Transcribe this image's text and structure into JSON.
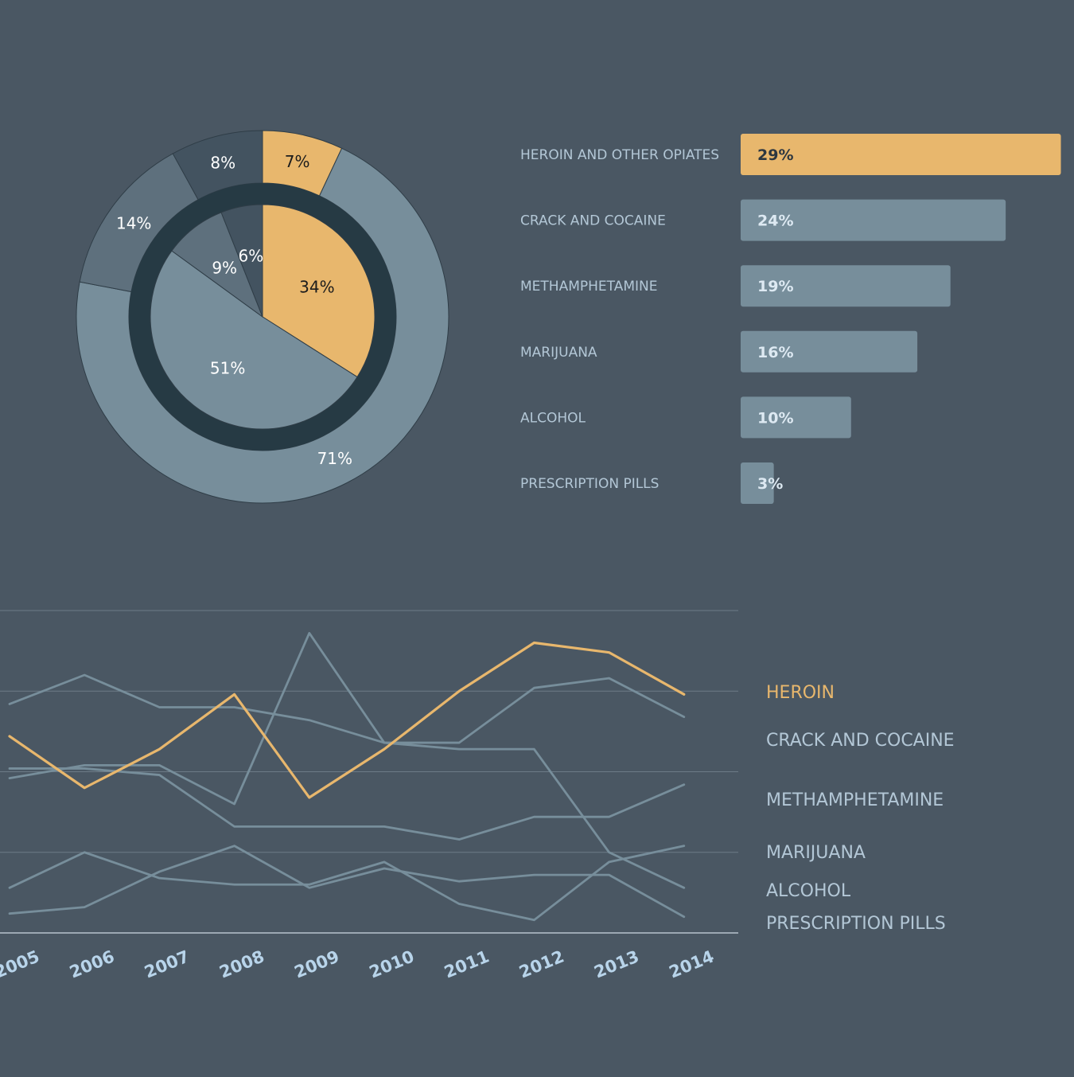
{
  "colors": {
    "background": "#4a5763",
    "highlight": "#e8b76d",
    "muted": "#778e9b",
    "dark_slice": "#5e707d",
    "darker_slice": "#435360",
    "inner_ring": "#263a44",
    "text_light": "#ffffff",
    "text_label": "#b3c7d6"
  },
  "chart_data": [
    {
      "type": "pie",
      "ring": "outer",
      "slices": [
        {
          "label": "7%",
          "value": 7,
          "color": "#e8b76d"
        },
        {
          "label": "71%",
          "value": 71,
          "color": "#778e9b"
        },
        {
          "label": "14%",
          "value": 14,
          "color": "#5e707d"
        },
        {
          "label": "8%",
          "value": 8,
          "color": "#435360"
        }
      ]
    },
    {
      "type": "pie",
      "ring": "inner",
      "slices": [
        {
          "label": "34%",
          "value": 34,
          "color": "#e8b76d"
        },
        {
          "label": "51%",
          "value": 51,
          "color": "#778e9b"
        },
        {
          "label": "9%",
          "value": 9,
          "color": "#5e707d"
        },
        {
          "label": "6%",
          "value": 6,
          "color": "#435360"
        }
      ]
    },
    {
      "type": "bar",
      "orientation": "horizontal",
      "categories": [
        "HEROIN AND OTHER OPIATES",
        "CRACK AND COCAINE",
        "METHAMPHETAMINE",
        "MARIJUANA",
        "ALCOHOL",
        "PRESCRIPTION PILLS"
      ],
      "values": [
        29,
        24,
        19,
        16,
        10,
        3
      ],
      "value_labels": [
        "29%",
        "24%",
        "19%",
        "16%",
        "10%",
        "3%"
      ],
      "highlight_index": 0
    },
    {
      "type": "line",
      "x": [
        "2005",
        "2006",
        "2007",
        "2008",
        "2009",
        "2010",
        "2011",
        "2012",
        "2013",
        "2014"
      ],
      "ylim": [
        0,
        100
      ],
      "grid": true,
      "series": [
        {
          "name": "HEROIN",
          "highlight": true,
          "values": [
            61,
            45,
            57,
            74,
            42,
            57,
            75,
            90,
            87,
            74
          ]
        },
        {
          "name": "CRACK AND COCAINE",
          "values": [
            48,
            52,
            52,
            40,
            93,
            59,
            59,
            76,
            79,
            67
          ]
        },
        {
          "name": "METHAMPHETAMINE",
          "values": [
            71,
            80,
            70,
            70,
            66,
            59,
            57,
            57,
            25,
            14
          ]
        },
        {
          "name": "MARIJUANA",
          "values": [
            51,
            51,
            49,
            33,
            33,
            33,
            29,
            36,
            36,
            46
          ]
        },
        {
          "name": "ALCOHOL",
          "values": [
            14,
            25,
            17,
            15,
            15,
            22,
            9,
            4,
            22,
            27
          ]
        },
        {
          "name": "PRESCRIPTION PILLS",
          "values": [
            6,
            8,
            19,
            27,
            14,
            20,
            16,
            18,
            18,
            5
          ]
        }
      ]
    }
  ]
}
